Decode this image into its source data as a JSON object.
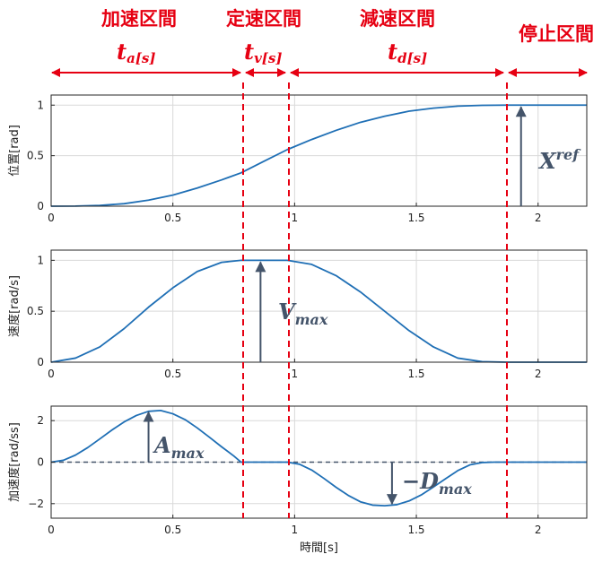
{
  "phases": [
    {
      "label": "加速区間",
      "dur_main": "t",
      "dur_sub": "a[s]"
    },
    {
      "label": "定速区間",
      "dur_main": "t",
      "dur_sub": "v[s]"
    },
    {
      "label": "減速区間",
      "dur_main": "t",
      "dur_sub": "d[s]"
    },
    {
      "label": "停止区間"
    }
  ],
  "annotations": {
    "xref": {
      "main": "X",
      "sup": "ref",
      "target_x": 1.93,
      "y_from": 0,
      "y_to": 1
    },
    "vmax": {
      "main": "V",
      "sub": "max",
      "target_x": 0.86,
      "y_from": 0,
      "y_to": 1
    },
    "amax": {
      "main": "A",
      "sub": "max",
      "target_x": 0.4,
      "y_from": 0,
      "y_to": 2.5
    },
    "dmax": {
      "main": "−D",
      "sub": "max",
      "target_x": 1.4,
      "y_from": 0,
      "y_to": -2.1
    }
  },
  "colors": {
    "curve": "#1f6fb5",
    "phase": "#e60012",
    "annotation": "#44546a",
    "axis": "#262626",
    "grid": "#d9d9d9",
    "zero_line": "#44546a"
  },
  "chart_data": [
    {
      "type": "line",
      "ylabel": "位置[rad]",
      "xlabel": "",
      "xlim": [
        0,
        2.2
      ],
      "ylim": [
        0,
        1.1
      ],
      "xticks": [
        0,
        0.5,
        1,
        1.5,
        2
      ],
      "xtick_labels": [
        "0",
        "0.5",
        "1",
        "1.5",
        "2"
      ],
      "yticks": [
        0,
        0.5,
        1
      ],
      "ytick_labels": [
        "0",
        "0.5",
        "1"
      ],
      "grid": true,
      "x": [
        0,
        0.1,
        0.2,
        0.3,
        0.4,
        0.5,
        0.6,
        0.7,
        0.78,
        0.87,
        0.97,
        1.07,
        1.17,
        1.27,
        1.37,
        1.47,
        1.57,
        1.67,
        1.77,
        1.87,
        2.0,
        2.2
      ],
      "y": [
        0,
        0.001,
        0.008,
        0.025,
        0.06,
        0.11,
        0.18,
        0.26,
        0.33,
        0.44,
        0.56,
        0.66,
        0.75,
        0.83,
        0.89,
        0.94,
        0.97,
        0.99,
        0.998,
        1.0,
        1.0,
        1.0
      ]
    },
    {
      "type": "line",
      "ylabel": "速度[rad/s]",
      "xlabel": "",
      "xlim": [
        0,
        2.2
      ],
      "ylim": [
        0,
        1.1
      ],
      "xticks": [
        0,
        0.5,
        1,
        1.5,
        2
      ],
      "xtick_labels": [
        "0",
        "0.5",
        "1",
        "1.5",
        "2"
      ],
      "yticks": [
        0,
        0.5,
        1
      ],
      "ytick_labels": [
        "0",
        "0.5",
        "1"
      ],
      "grid": true,
      "x": [
        0,
        0.1,
        0.2,
        0.3,
        0.4,
        0.5,
        0.6,
        0.7,
        0.78,
        0.87,
        0.97,
        1.07,
        1.17,
        1.27,
        1.37,
        1.47,
        1.57,
        1.67,
        1.77,
        1.87,
        2.0,
        2.2
      ],
      "y": [
        0,
        0.04,
        0.15,
        0.33,
        0.54,
        0.73,
        0.89,
        0.98,
        1.0,
        1.0,
        1.0,
        0.96,
        0.85,
        0.69,
        0.5,
        0.31,
        0.15,
        0.04,
        0.005,
        0,
        0,
        0
      ]
    },
    {
      "type": "line",
      "ylabel": "加速度[rad/ss]",
      "xlabel": "時間[s]",
      "xlim": [
        0,
        2.2
      ],
      "ylim": [
        -2.7,
        2.7
      ],
      "xticks": [
        0,
        0.5,
        1,
        1.5,
        2
      ],
      "xtick_labels": [
        "0",
        "0.5",
        "1",
        "1.5",
        "2"
      ],
      "yticks": [
        -2,
        0,
        2
      ],
      "ytick_labels": [
        "−2",
        "0",
        "2"
      ],
      "grid": true,
      "x": [
        0,
        0.05,
        0.1,
        0.15,
        0.2,
        0.25,
        0.3,
        0.35,
        0.4,
        0.45,
        0.5,
        0.55,
        0.6,
        0.65,
        0.7,
        0.75,
        0.78,
        0.87,
        0.97,
        1.02,
        1.07,
        1.12,
        1.17,
        1.22,
        1.27,
        1.32,
        1.37,
        1.42,
        1.47,
        1.52,
        1.57,
        1.62,
        1.67,
        1.72,
        1.77,
        1.82,
        1.87,
        2.0,
        2.2
      ],
      "y": [
        0,
        0.09,
        0.34,
        0.7,
        1.12,
        1.55,
        1.94,
        2.25,
        2.45,
        2.49,
        2.33,
        2.05,
        1.65,
        1.2,
        0.74,
        0.3,
        0,
        0,
        0,
        -0.1,
        -0.38,
        -0.78,
        -1.21,
        -1.6,
        -1.91,
        -2.07,
        -2.1,
        -2.05,
        -1.87,
        -1.58,
        -1.2,
        -0.8,
        -0.41,
        -0.13,
        -0.02,
        0,
        0,
        0,
        0
      ]
    }
  ]
}
